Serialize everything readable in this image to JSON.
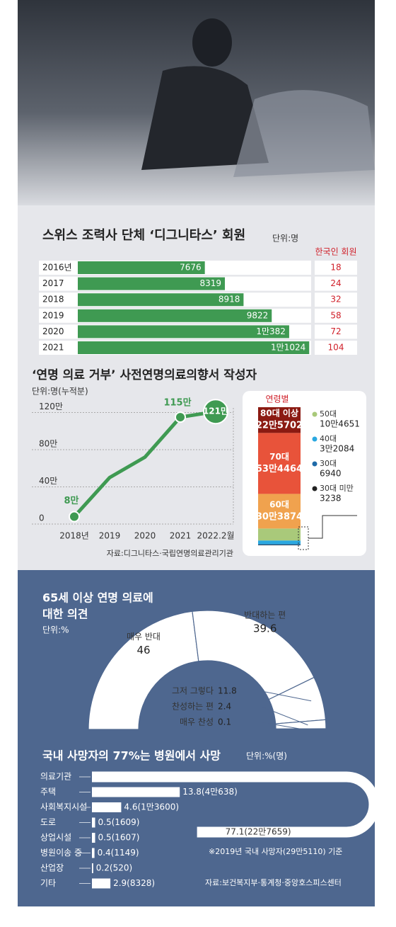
{
  "chart_data": [
    {
      "type": "bar",
      "orientation": "horizontal",
      "title": "스위스 조력사 단체 ‘디그니타스’ 회원",
      "unit": "단위:명",
      "categories": [
        "2016년",
        "2017",
        "2018",
        "2019",
        "2020",
        "2021"
      ],
      "values": [
        7676,
        8319,
        8918,
        9822,
        10382,
        11024
      ],
      "value_labels": [
        "7676",
        "8319",
        "8918",
        "9822",
        "1만382",
        "1만1024"
      ],
      "color": "#3f9a52",
      "xlim": [
        3600,
        11200
      ],
      "korean_members": {
        "title": "한국인 회원",
        "values": [
          18,
          24,
          32,
          58,
          72,
          104
        ],
        "color": "#d0202a"
      }
    },
    {
      "type": "line",
      "title": "‘연명 의료 거부’ 사전연명의료의향서 작성자",
      "unit": "단위:명(누적분)",
      "categories": [
        "2018년",
        "2019",
        "2020",
        "2021",
        "2022.2월"
      ],
      "values": [
        80000,
        500000,
        720000,
        1150000,
        1210000
      ],
      "value_labels": [
        "8만",
        null,
        null,
        "115만",
        "121만"
      ],
      "color": "#3f9a52",
      "ylim": [
        0,
        1250000
      ],
      "yticks": [
        0,
        {
          "value": 400000,
          "label": "40만"
        },
        {
          "value": 800000,
          "label": "80만"
        },
        {
          "value": 1200000,
          "label": "120만"
        }
      ],
      "grid": true,
      "source": "자료:디그니타스·국립연명의료관리기관"
    },
    {
      "type": "stacked_bar",
      "title": "연령별",
      "series": [
        {
          "name": "30대 미만",
          "color": "#222222",
          "values": [
            3238
          ]
        },
        {
          "name": "30대",
          "color": "#1e6aa8",
          "values": [
            6940
          ]
        },
        {
          "name": "40대",
          "color": "#2aa8e0",
          "values": [
            32084
          ],
          "value_labels": [
            "3만2084"
          ]
        },
        {
          "name": "50대",
          "color": "#a9c97a",
          "values": [
            104651
          ],
          "value_labels": [
            "10만4651"
          ]
        },
        {
          "name": "60대",
          "color": "#f0a24e",
          "values": [
            303874
          ],
          "value_labels": [
            "30만3874"
          ]
        },
        {
          "name": "70대",
          "color": "#e8533a",
          "values": [
            534464
          ],
          "value_labels": [
            "53만4464"
          ]
        },
        {
          "name": "80대 이상",
          "color": "#8b1a12",
          "values": [
            225702
          ],
          "value_labels": [
            "22만5702"
          ]
        }
      ]
    },
    {
      "type": "semi_donut",
      "title_lines": [
        "65세 이상 연명 의료에",
        "대한 의견"
      ],
      "unit": "단위:%",
      "categories": [
        "매우 반대",
        "반대하는 편",
        "그저 그렇다",
        "찬성하는 편",
        "매우 찬성"
      ],
      "values": [
        46,
        39.6,
        11.8,
        2.4,
        0.1
      ],
      "color": "#ffffff"
    },
    {
      "type": "bar",
      "orientation": "horizontal",
      "title": "국내 사망자의 77%는 병원에서 사망",
      "unit": "단위:%(명)",
      "categories": [
        "의료기관",
        "주택",
        "사회복지시설",
        "도로",
        "상업시설",
        "병원이송 중",
        "산업장",
        "기타"
      ],
      "values": [
        77.1,
        13.8,
        4.6,
        0.5,
        0.5,
        0.4,
        0.2,
        2.9
      ],
      "value_labels": [
        "77.1(22만7659)",
        "13.8(4만638)",
        "4.6(1만3600)",
        "0.5(1609)",
        "0.5(1607)",
        "0.4(1149)",
        "0.2(520)",
        "2.9(8328)"
      ],
      "color": "#ffffff",
      "note": "※2019년 국내 사망자(29만5110) 기준",
      "source": "자료:보건복지부·통계청·중앙호스피스센터"
    }
  ]
}
